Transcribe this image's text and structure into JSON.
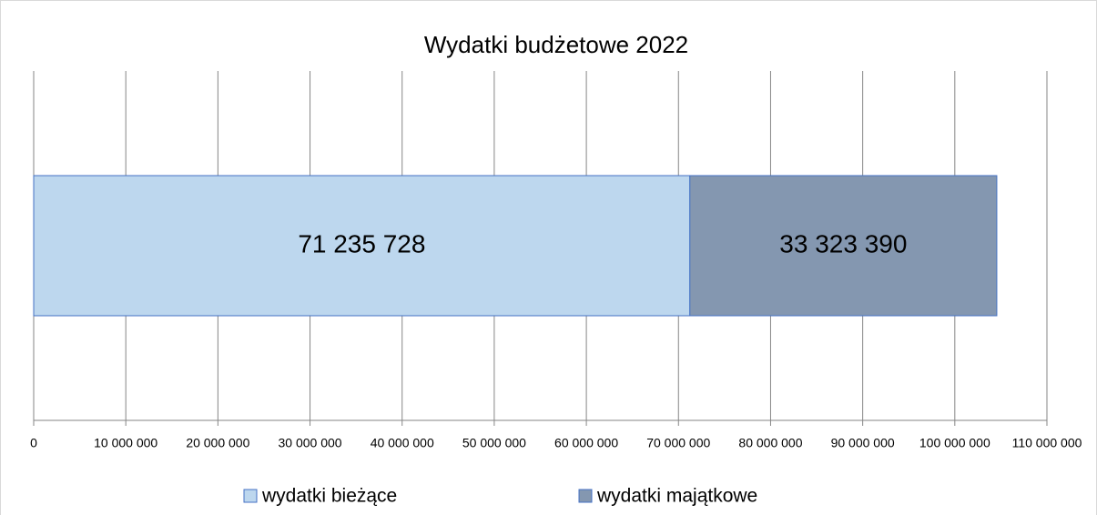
{
  "chart_data": {
    "type": "bar",
    "orientation": "horizontal",
    "stacked": true,
    "title": "Wydatki budżetowe 2022",
    "series": [
      {
        "name": "wydatki bieżące",
        "color": "#bdd7ee",
        "values": [
          71235728
        ],
        "value_labels": [
          "71 235 728"
        ]
      },
      {
        "name": "wydatki majątkowe",
        "color": "#8497b0",
        "values": [
          33323390
        ],
        "value_labels": [
          "33 323 390"
        ]
      }
    ],
    "xlim": [
      0,
      110000000
    ],
    "xticks": [
      0,
      {
        "value": 10000000,
        "label": "10 000 000"
      },
      {
        "value": 20000000,
        "label": "20 000 000"
      },
      {
        "value": 30000000,
        "label": "30 000 000"
      },
      {
        "value": 40000000,
        "label": "40 000 000"
      },
      {
        "value": 50000000,
        "label": "50 000 000"
      },
      {
        "value": 60000000,
        "label": "60 000 000"
      },
      {
        "value": 70000000,
        "label": "70 000 000"
      },
      {
        "value": 80000000,
        "label": "80 000 000"
      },
      {
        "value": 90000000,
        "label": "90 000 000"
      },
      {
        "value": 100000000,
        "label": "100 000 000"
      },
      {
        "value": 110000000,
        "label": "110 000 000"
      }
    ],
    "grid": true,
    "legend": "bottom"
  }
}
